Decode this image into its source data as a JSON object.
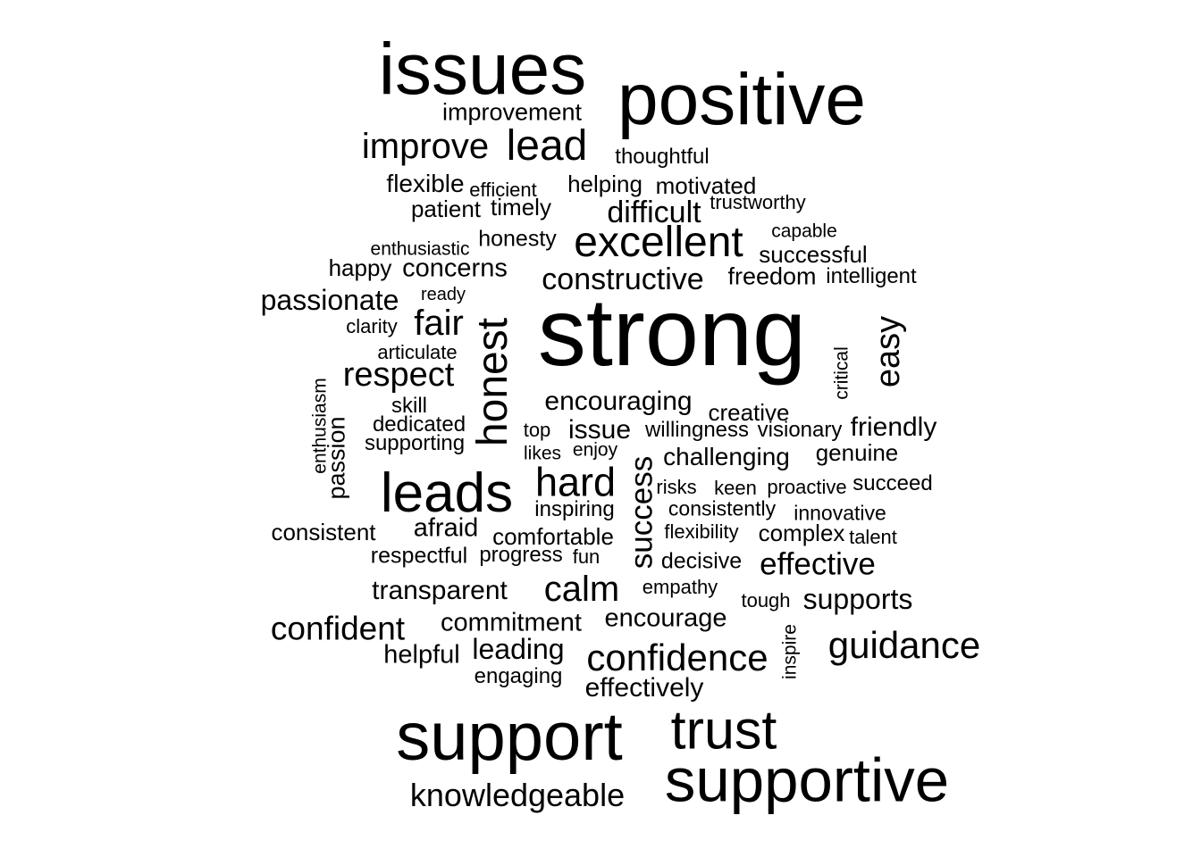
{
  "cloud": {
    "text_color": "#000000",
    "background": "#ffffff",
    "words": [
      {
        "text": "issues",
        "weight": 100
      },
      {
        "text": "positive",
        "weight": 100
      },
      {
        "text": "improvement",
        "weight": 35
      },
      {
        "text": "improve",
        "weight": 50
      },
      {
        "text": "lead",
        "weight": 60
      },
      {
        "text": "thoughtful",
        "weight": 30
      },
      {
        "text": "flexible",
        "weight": 35
      },
      {
        "text": "efficient",
        "weight": 28
      },
      {
        "text": "helping",
        "weight": 33
      },
      {
        "text": "motivated",
        "weight": 33
      },
      {
        "text": "patient",
        "weight": 32
      },
      {
        "text": "timely",
        "weight": 32
      },
      {
        "text": "difficult",
        "weight": 42
      },
      {
        "text": "trustworthy",
        "weight": 28
      },
      {
        "text": "enthusiastic",
        "weight": 26
      },
      {
        "text": "honesty",
        "weight": 32
      },
      {
        "text": "excellent",
        "weight": 62
      },
      {
        "text": "capable",
        "weight": 26
      },
      {
        "text": "successful",
        "weight": 32
      },
      {
        "text": "happy",
        "weight": 32
      },
      {
        "text": "concerns",
        "weight": 36
      },
      {
        "text": "constructive",
        "weight": 42
      },
      {
        "text": "freedom",
        "weight": 34
      },
      {
        "text": "intelligent",
        "weight": 30
      },
      {
        "text": "passionate",
        "weight": 40
      },
      {
        "text": "ready",
        "weight": 25
      },
      {
        "text": "strong",
        "weight": 130
      },
      {
        "text": "fair",
        "weight": 50
      },
      {
        "text": "honest",
        "weight": 60
      },
      {
        "text": "easy",
        "weight": 48
      },
      {
        "text": "clarity",
        "weight": 28
      },
      {
        "text": "articulate",
        "weight": 27
      },
      {
        "text": "critical",
        "weight": 26
      },
      {
        "text": "respect",
        "weight": 48
      },
      {
        "text": "enthusiasm",
        "weight": 26
      },
      {
        "text": "skill",
        "weight": 30
      },
      {
        "text": "encouraging",
        "weight": 38
      },
      {
        "text": "creative",
        "weight": 34
      },
      {
        "text": "dedicated",
        "weight": 30
      },
      {
        "text": "passion",
        "weight": 34
      },
      {
        "text": "issue",
        "weight": 38
      },
      {
        "text": "top",
        "weight": 28
      },
      {
        "text": "willingness",
        "weight": 30
      },
      {
        "text": "visionary",
        "weight": 30
      },
      {
        "text": "friendly",
        "weight": 38
      },
      {
        "text": "supporting",
        "weight": 30
      },
      {
        "text": "enjoy",
        "weight": 26
      },
      {
        "text": "likes",
        "weight": 26
      },
      {
        "text": "challenging",
        "weight": 36
      },
      {
        "text": "genuine",
        "weight": 32
      },
      {
        "text": "leads",
        "weight": 78
      },
      {
        "text": "hard",
        "weight": 56
      },
      {
        "text": "success",
        "weight": 44
      },
      {
        "text": "risks",
        "weight": 27
      },
      {
        "text": "keen",
        "weight": 27
      },
      {
        "text": "proactive",
        "weight": 28
      },
      {
        "text": "succeed",
        "weight": 30
      },
      {
        "text": "inspiring",
        "weight": 30
      },
      {
        "text": "consistently",
        "weight": 29
      },
      {
        "text": "innovative",
        "weight": 29
      },
      {
        "text": "consistent",
        "weight": 32
      },
      {
        "text": "afraid",
        "weight": 36
      },
      {
        "text": "comfortable",
        "weight": 33
      },
      {
        "text": "flexibility",
        "weight": 27
      },
      {
        "text": "complex",
        "weight": 32
      },
      {
        "text": "talent",
        "weight": 27
      },
      {
        "text": "respectful",
        "weight": 31
      },
      {
        "text": "progress",
        "weight": 30
      },
      {
        "text": "fun",
        "weight": 28
      },
      {
        "text": "decisive",
        "weight": 31
      },
      {
        "text": "effective",
        "weight": 44
      },
      {
        "text": "transparent",
        "weight": 38
      },
      {
        "text": "calm",
        "weight": 50
      },
      {
        "text": "empathy",
        "weight": 28
      },
      {
        "text": "tough",
        "weight": 28
      },
      {
        "text": "supports",
        "weight": 40
      },
      {
        "text": "confident",
        "weight": 46
      },
      {
        "text": "commitment",
        "weight": 36
      },
      {
        "text": "encourage",
        "weight": 36
      },
      {
        "text": "inspire",
        "weight": 27
      },
      {
        "text": "guidance",
        "weight": 52
      },
      {
        "text": "helpful",
        "weight": 36
      },
      {
        "text": "leading",
        "weight": 40
      },
      {
        "text": "confidence",
        "weight": 52
      },
      {
        "text": "engaging",
        "weight": 30
      },
      {
        "text": "effectively",
        "weight": 38
      },
      {
        "text": "support",
        "weight": 95
      },
      {
        "text": "trust",
        "weight": 76
      },
      {
        "text": "supportive",
        "weight": 86
      },
      {
        "text": "knowledgeable",
        "weight": 45
      }
    ]
  }
}
